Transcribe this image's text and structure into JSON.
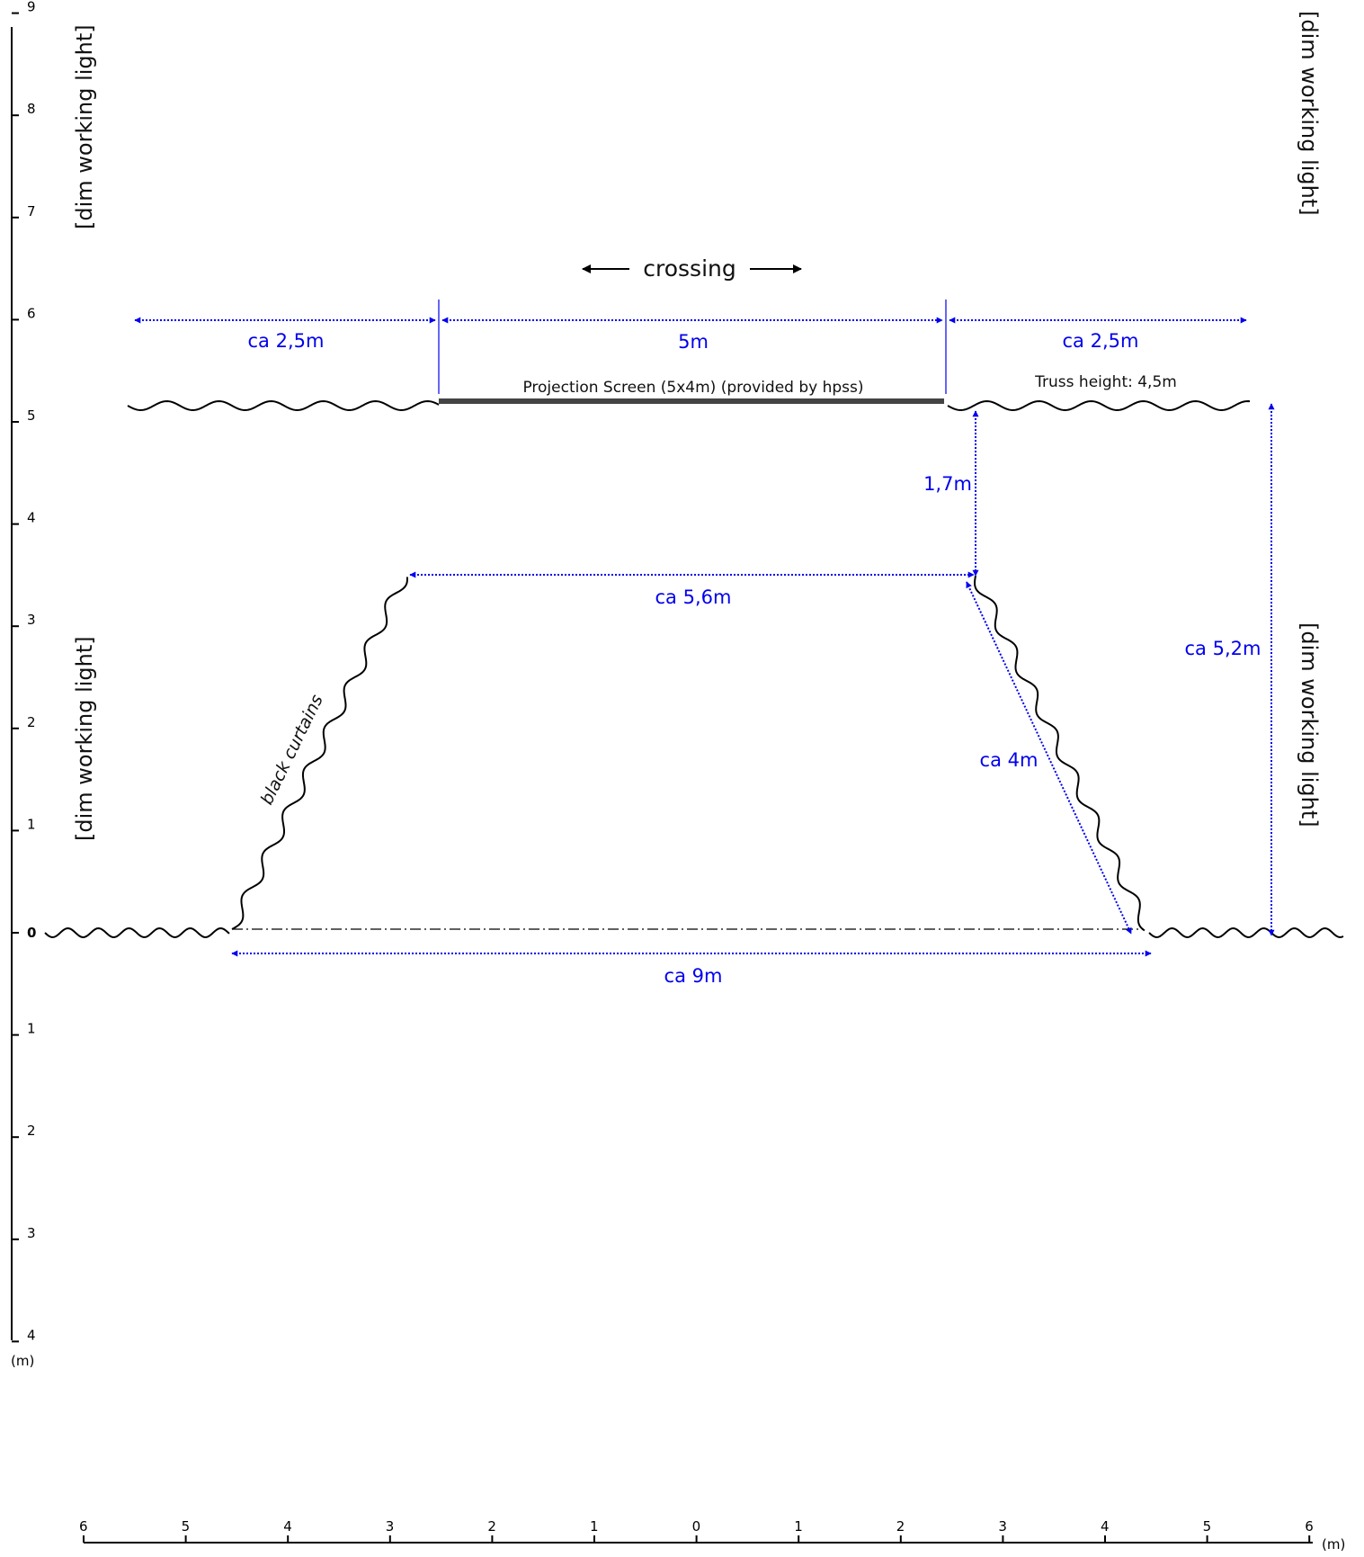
{
  "colors": {
    "dimension": "#0000ee",
    "ink": "#000000",
    "screen": "#444444"
  },
  "left_axis": {
    "upper_ticks": [
      "9",
      "8",
      "7",
      "6",
      "5",
      "4",
      "3",
      "2",
      "1"
    ],
    "zero": "0",
    "lower_ticks": [
      "1",
      "2",
      "3",
      "4"
    ],
    "unit": "(m)"
  },
  "bottom_axis": {
    "ticks": [
      "6",
      "5",
      "4",
      "3",
      "2",
      "1",
      "0",
      "1",
      "2",
      "3",
      "4",
      "5",
      "6"
    ],
    "unit": "(m)"
  },
  "labels": {
    "crossing": "crossing",
    "screen": "Projection Screen (5x4m) (provided by hpss)",
    "truss": "Truss height:  4,5m",
    "curtains": "black curtains",
    "working_light": "[dim working light]"
  },
  "dimensions": {
    "left_span": "ca 2,5m",
    "screen_span": "5m",
    "right_span": "ca 2,5m",
    "gap": "1,7m",
    "top_opening": "ca 5,6m",
    "diagonal": "ca 4m",
    "height": "ca 5,2m",
    "bottom_opening": "ca 9m"
  }
}
